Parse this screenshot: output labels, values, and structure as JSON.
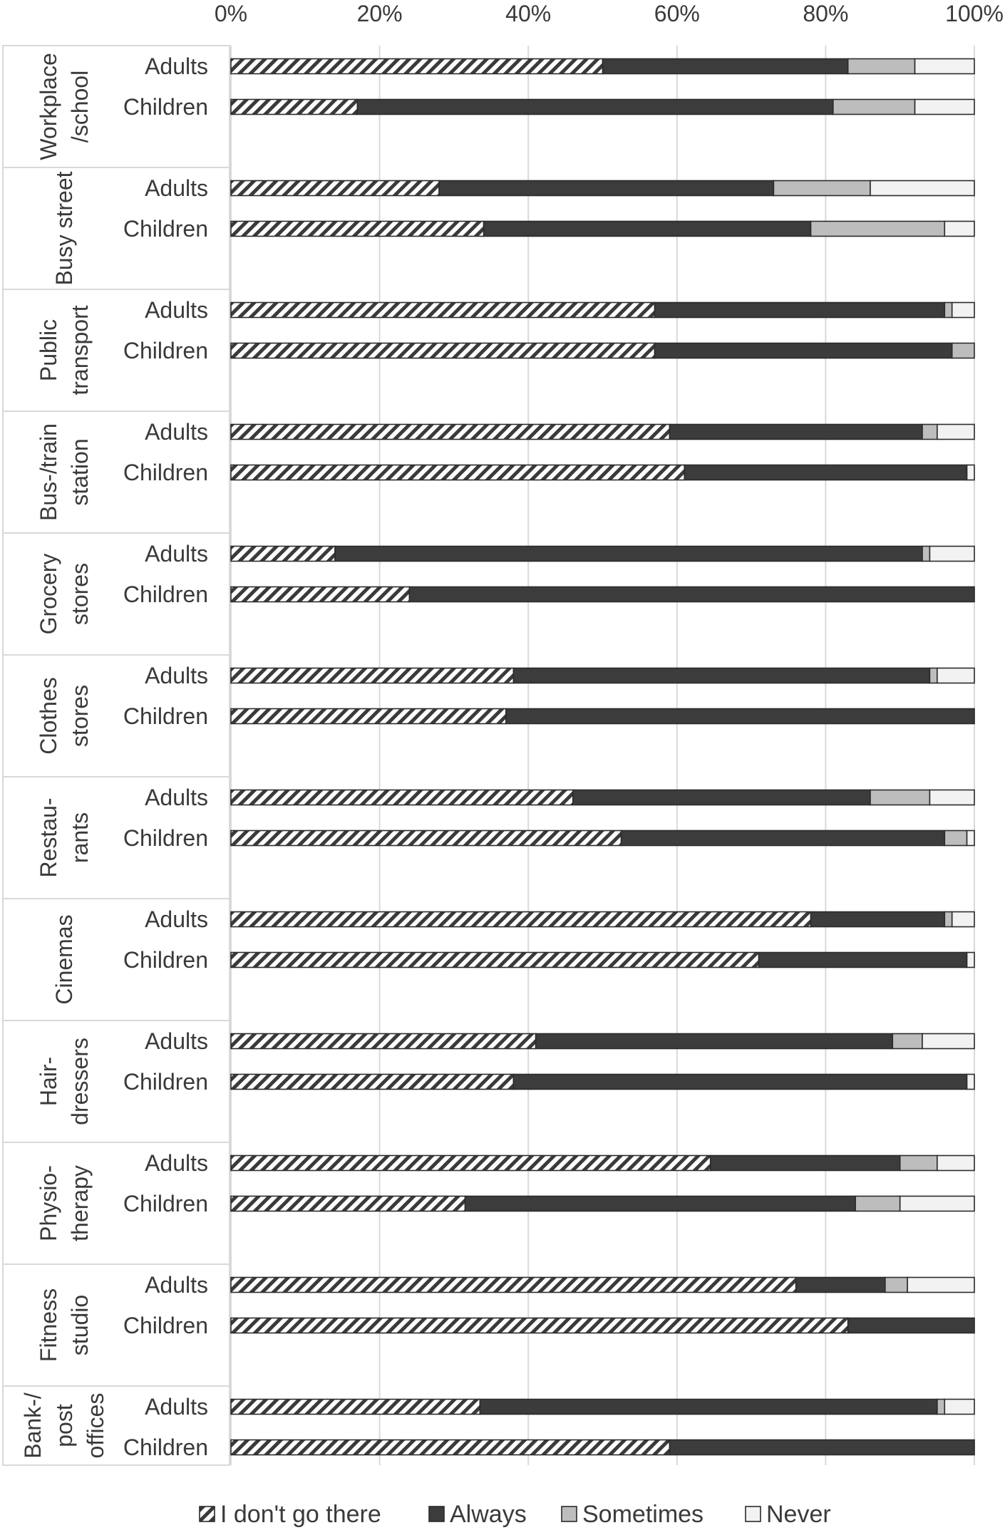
{
  "chart_data": {
    "type": "bar",
    "orientation": "horizontal",
    "stacked": "percent",
    "xlim": [
      0,
      100
    ],
    "x_ticks": [
      "0%",
      "20%",
      "40%",
      "60%",
      "80%",
      "100%"
    ],
    "x_tick_values": [
      0,
      20,
      40,
      60,
      80,
      100
    ],
    "grid": true,
    "legend_position": "bottom",
    "series_names": [
      "I don't go there",
      "Always",
      "Sometimes",
      "Never"
    ],
    "series_colors": [
      "hatched",
      "#3c3c3c",
      "#bdbdbd",
      "#f2f2f2"
    ],
    "groups": [
      {
        "label_lines": [
          "Workplace",
          "/school"
        ],
        "rows": [
          {
            "label": "Adults",
            "values": [
              50,
              33,
              9,
              8
            ]
          },
          {
            "label": "Children",
            "values": [
              17,
              64,
              11,
              8
            ]
          }
        ]
      },
      {
        "label_lines": [
          "Busy street"
        ],
        "rows": [
          {
            "label": "Adults",
            "values": [
              28,
              45,
              13,
              14
            ]
          },
          {
            "label": "Children",
            "values": [
              34,
              44,
              18,
              4
            ]
          }
        ]
      },
      {
        "label_lines": [
          "Public",
          "transport"
        ],
        "rows": [
          {
            "label": "Adults",
            "values": [
              57,
              39,
              1,
              3
            ]
          },
          {
            "label": "Children",
            "values": [
              57,
              40,
              3,
              0
            ]
          }
        ]
      },
      {
        "label_lines": [
          "Bus-/train",
          "station"
        ],
        "rows": [
          {
            "label": "Adults",
            "values": [
              59,
              34,
              2,
              5
            ]
          },
          {
            "label": "Children",
            "values": [
              61,
              38,
              0,
              1
            ]
          }
        ]
      },
      {
        "label_lines": [
          "Grocery",
          "stores"
        ],
        "rows": [
          {
            "label": "Adults",
            "values": [
              14,
              79,
              1,
              6
            ]
          },
          {
            "label": "Children",
            "values": [
              24,
              76,
              0,
              0
            ]
          }
        ]
      },
      {
        "label_lines": [
          "Clothes",
          "stores"
        ],
        "rows": [
          {
            "label": "Adults",
            "values": [
              38,
              56,
              1,
              5
            ]
          },
          {
            "label": "Children",
            "values": [
              37,
              63,
              0,
              0
            ]
          }
        ]
      },
      {
        "label_lines": [
          "Restau-",
          "rants"
        ],
        "rows": [
          {
            "label": "Adults",
            "values": [
              46,
              40,
              8,
              6
            ]
          },
          {
            "label": "Children",
            "values": [
              52.5,
              43.5,
              3,
              1
            ]
          }
        ]
      },
      {
        "label_lines": [
          "Cinemas"
        ],
        "rows": [
          {
            "label": "Adults",
            "values": [
              78,
              18,
              1,
              3
            ]
          },
          {
            "label": "Children",
            "values": [
              71,
              28,
              0,
              1
            ]
          }
        ]
      },
      {
        "label_lines": [
          "Hair-",
          "dressers"
        ],
        "rows": [
          {
            "label": "Adults",
            "values": [
              41,
              48,
              4,
              7
            ]
          },
          {
            "label": "Children",
            "values": [
              38,
              61,
              0,
              1
            ]
          }
        ]
      },
      {
        "label_lines": [
          "Physio-",
          "therapy"
        ],
        "rows": [
          {
            "label": "Adults",
            "values": [
              64.5,
              25.5,
              5,
              5
            ]
          },
          {
            "label": "Children",
            "values": [
              31.5,
              52.5,
              6,
              10
            ]
          }
        ]
      },
      {
        "label_lines": [
          "Fitness",
          "studio"
        ],
        "rows": [
          {
            "label": "Adults",
            "values": [
              76,
              12,
              3,
              9
            ]
          },
          {
            "label": "Children",
            "values": [
              83,
              17,
              0,
              0
            ]
          }
        ]
      },
      {
        "label_lines": [
          "Bank-/",
          "post",
          "offices"
        ],
        "rows": [
          {
            "label": "Adults",
            "values": [
              33.5,
              61.5,
              1,
              4
            ]
          },
          {
            "label": "Children",
            "values": [
              59,
              41,
              0,
              0
            ]
          }
        ]
      }
    ]
  }
}
